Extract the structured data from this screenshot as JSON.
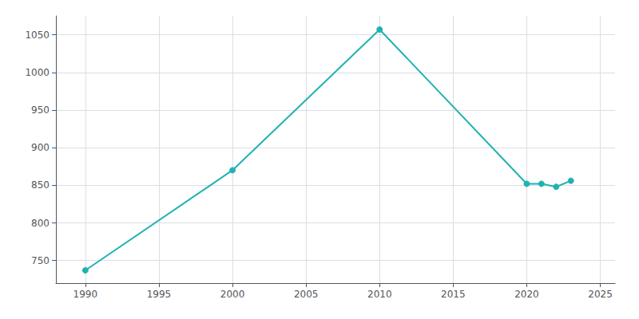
{
  "chart_data": {
    "type": "line",
    "x": [
      1990,
      2000,
      2010,
      2020,
      2021,
      2022,
      2023
    ],
    "values": [
      737,
      870,
      1057,
      852,
      852,
      848,
      856
    ],
    "color": "#20b2b2",
    "marker": "circle",
    "xlim": [
      1988,
      2026
    ],
    "ylim": [
      720,
      1075
    ],
    "xticks": [
      1990,
      1995,
      2000,
      2005,
      2010,
      2015,
      2020,
      2025
    ],
    "yticks": [
      750,
      800,
      850,
      900,
      950,
      1000,
      1050
    ],
    "grid": true
  }
}
